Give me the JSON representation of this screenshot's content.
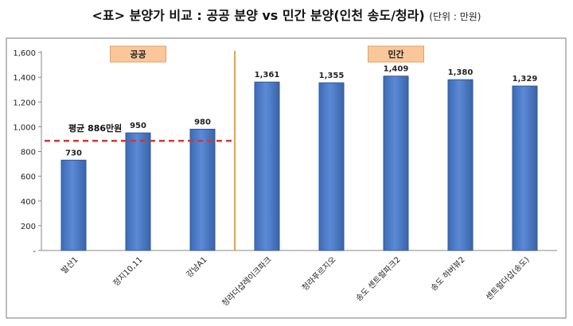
{
  "header": {
    "tag": "<표>",
    "title": "분양가 비교 : 공공 분양 vs 민간 분양(인천 송도/청라)",
    "unit": "(단위 : 만원)"
  },
  "chart_data": {
    "type": "bar",
    "categories": [
      "발산1",
      "정지10,11",
      "강남A1",
      "청라더샵레이크파크",
      "청라푸르지오",
      "송도 센트럴파크2",
      "송도 하버뷰2",
      "센트럴더샵(송도)"
    ],
    "values": [
      730,
      950,
      980,
      1361,
      1355,
      1409,
      1380,
      1329
    ],
    "value_labels": [
      "730",
      "950",
      "980",
      "1,361",
      "1,355",
      "1,409",
      "1,380",
      "1,329"
    ],
    "ylim": [
      0,
      1600
    ],
    "y_ticks": [
      "-",
      "200",
      "400",
      "600",
      "800",
      "1,000",
      "1,200",
      "1,400",
      "1,600"
    ],
    "grid": false,
    "groups": [
      {
        "label": "공공",
        "from": 0,
        "to": 2
      },
      {
        "label": "민간",
        "from": 3,
        "to": 7
      }
    ],
    "average_line": {
      "value": 886,
      "label": "평균 886만원",
      "color": "#e03030"
    },
    "colors": {
      "bar": "#4a7cc9",
      "bar_edge": "#2f5a9e",
      "group_box": "#f9c79a",
      "divider": "#f0a040",
      "frame": "#7a7a7a"
    }
  }
}
